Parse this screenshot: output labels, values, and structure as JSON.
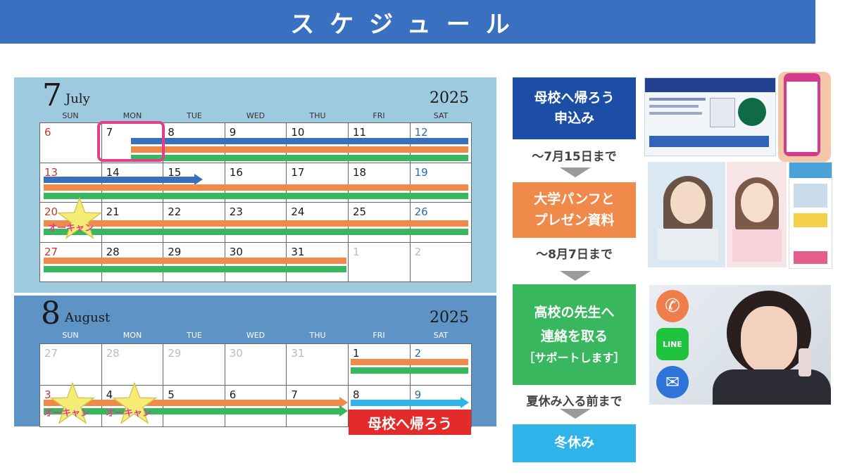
{
  "banner": {
    "title": "スケジュール"
  },
  "july": {
    "month_num": "7",
    "month_name": "July",
    "year": "2025",
    "weekdays": [
      "SUN",
      "MON",
      "TUE",
      "WED",
      "THU",
      "FRI",
      "SAT"
    ],
    "weeks": [
      [
        "6",
        "7",
        "8",
        "9",
        "10",
        "11",
        "12"
      ],
      [
        "13",
        "14",
        "15",
        "16",
        "17",
        "18",
        "19"
      ],
      [
        "20",
        "21",
        "22",
        "23",
        "24",
        "25",
        "26"
      ],
      [
        "27",
        "28",
        "29",
        "30",
        "31",
        "1",
        "2"
      ]
    ],
    "star_label": "オーキャン"
  },
  "august": {
    "month_num": "8",
    "month_name": "August",
    "year": "2025",
    "weekdays": [
      "SUN",
      "MON",
      "TUE",
      "WED",
      "THU",
      "FRI",
      "SAT"
    ],
    "weeks": [
      [
        "27",
        "28",
        "29",
        "30",
        "31",
        "1",
        "2"
      ],
      [
        "3",
        "4",
        "5",
        "6",
        "7",
        "8",
        "9"
      ]
    ],
    "star_label_1": "オーキャン",
    "star_label_2": "オーキャン",
    "badge": "母校へ帰ろう"
  },
  "flow": {
    "step1": [
      "母校へ帰ろう",
      "申込み"
    ],
    "deadline1": "～7月15日まで",
    "step2": [
      "大学パンフと",
      "プレゼン資料"
    ],
    "deadline2": "～8月7日まで",
    "step3": [
      "高校の先生へ",
      "連絡を取る",
      "［サポートします］"
    ],
    "deadline3": "夏休み入る前まで",
    "step4": "冬休み"
  },
  "contact_icons": {
    "phone": "phone-icon",
    "line": "LINE",
    "mail": "mail-icon"
  },
  "colors": {
    "banner": "#3a70c0",
    "july_bg": "#9ecadf",
    "august_bg": "#5e93c5",
    "bar_blue": "#3a6fbd",
    "bar_orange": "#f08a4b",
    "bar_green": "#39b75f",
    "bar_cyan": "#2fb4ea",
    "step1": "#1c4ea6",
    "step2": "#f08a4b",
    "step3": "#39b75f",
    "step4": "#2fb4ea",
    "highlight": "#e0408a",
    "badge": "#e32b2b"
  }
}
